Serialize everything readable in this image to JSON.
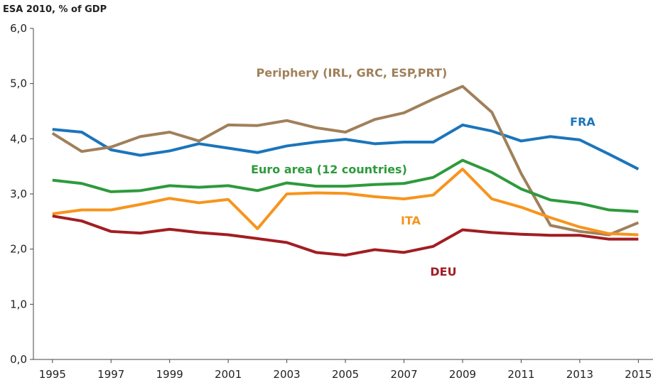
{
  "chart_data": {
    "type": "line",
    "title": "ESA 2010, % of GDP",
    "x": [
      1995,
      1996,
      1997,
      1998,
      1999,
      2000,
      2001,
      2002,
      2003,
      2004,
      2005,
      2006,
      2007,
      2008,
      2009,
      2010,
      2011,
      2012,
      2013,
      2014,
      2015
    ],
    "xlim": [
      1994.35,
      2015.5
    ],
    "xticks": [
      1995,
      1997,
      1999,
      2001,
      2003,
      2005,
      2007,
      2009,
      2011,
      2013,
      2015
    ],
    "ylim": [
      0,
      6
    ],
    "yticks": [
      {
        "value": 0,
        "label": "0,0"
      },
      {
        "value": 1,
        "label": "1,0"
      },
      {
        "value": 2,
        "label": "2,0"
      },
      {
        "value": 3,
        "label": "3,0"
      },
      {
        "value": 4,
        "label": "4,0"
      },
      {
        "value": 5,
        "label": "5,0"
      },
      {
        "value": 6,
        "label": "6,0"
      }
    ],
    "grid": false,
    "series": [
      {
        "name": "FRA",
        "color": "#1b75bb",
        "values": [
          4.17,
          4.12,
          3.8,
          3.7,
          3.78,
          3.91,
          3.83,
          3.75,
          3.87,
          3.94,
          3.99,
          3.91,
          3.94,
          3.94,
          4.25,
          4.14,
          3.96,
          4.04,
          3.98,
          3.72,
          3.45
        ]
      },
      {
        "name": "Periphery (IRL, GRC, ESP,PRT)",
        "color": "#a0805a",
        "values": [
          4.1,
          3.77,
          3.85,
          4.04,
          4.12,
          3.96,
          4.25,
          4.24,
          4.33,
          4.2,
          4.12,
          4.35,
          4.47,
          4.72,
          4.95,
          4.48,
          3.37,
          2.43,
          2.32,
          2.26,
          2.48
        ]
      },
      {
        "name": "Euro area (12 countries)",
        "color": "#2e9a3c",
        "values": [
          3.25,
          3.19,
          3.04,
          3.06,
          3.15,
          3.12,
          3.15,
          3.06,
          3.2,
          3.14,
          3.14,
          3.17,
          3.19,
          3.3,
          3.61,
          3.39,
          3.09,
          2.89,
          2.83,
          2.71,
          2.68
        ]
      },
      {
        "name": "ITA",
        "color": "#f7941d",
        "values": [
          2.64,
          2.71,
          2.71,
          2.81,
          2.92,
          2.84,
          2.9,
          2.37,
          3.0,
          3.02,
          3.01,
          2.95,
          2.91,
          2.98,
          3.45,
          2.91,
          2.76,
          2.57,
          2.4,
          2.28,
          2.26
        ]
      },
      {
        "name": "DEU",
        "color": "#a21d22",
        "values": [
          2.6,
          2.51,
          2.32,
          2.29,
          2.36,
          2.3,
          2.26,
          2.19,
          2.12,
          1.94,
          1.89,
          1.99,
          1.94,
          2.05,
          2.35,
          2.3,
          2.27,
          2.25,
          2.25,
          2.18,
          2.18
        ]
      }
    ]
  }
}
